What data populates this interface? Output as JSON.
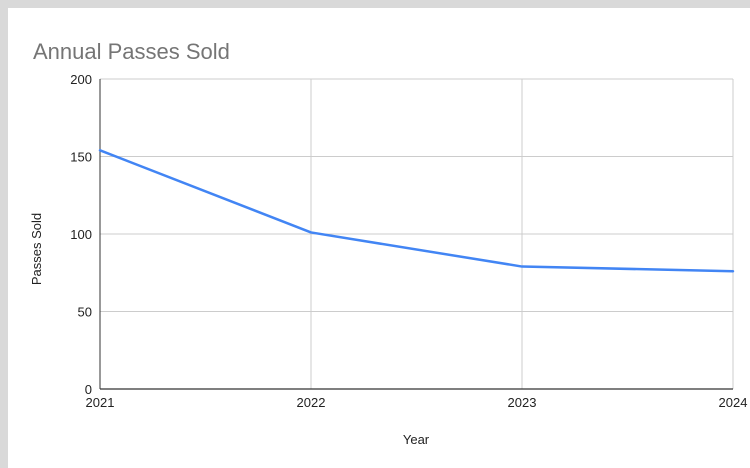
{
  "chart_data": {
    "type": "line",
    "title": "Annual Passes Sold",
    "xlabel": "Year",
    "ylabel": "Passes Sold",
    "categories": [
      "2021",
      "2022",
      "2023",
      "2024"
    ],
    "series": [
      {
        "values": [
          154,
          101,
          79,
          76
        ]
      }
    ],
    "ylim": [
      0,
      200
    ],
    "yticks": [
      0,
      50,
      100,
      150,
      200
    ],
    "grid": true,
    "legend": "none",
    "colors": {
      "line": "#4285f4",
      "grid": "#cccccc",
      "axis": "#333333",
      "title": "#757575",
      "page_background": "#d9d9d9",
      "card_background": "#ffffff"
    }
  }
}
